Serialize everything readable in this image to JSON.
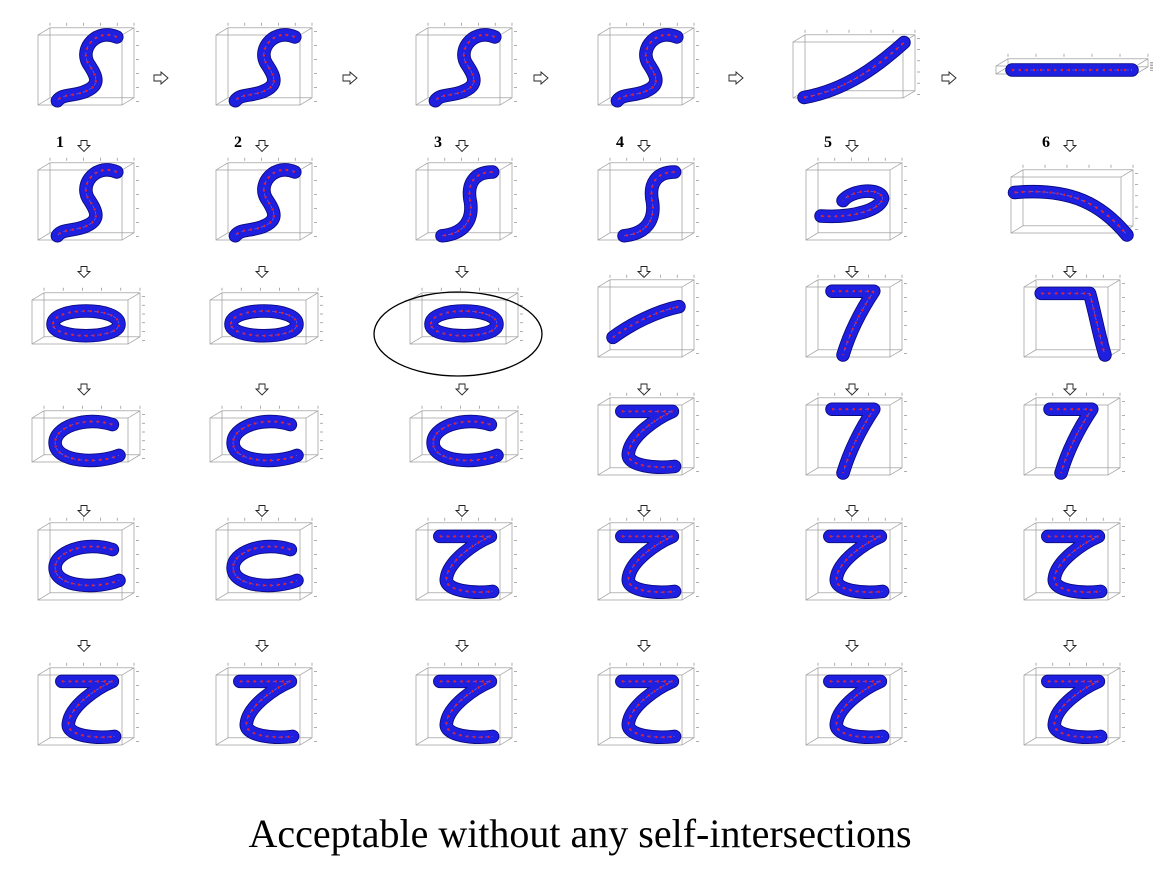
{
  "caption": "Acceptable without any self-intersections",
  "columns": [
    {
      "label": "1",
      "shapes": [
        "S",
        "S",
        "O",
        "C",
        "C",
        "Z"
      ]
    },
    {
      "label": "2",
      "shapes": [
        "S",
        "S",
        "O",
        "C",
        "C",
        "Z"
      ]
    },
    {
      "label": "3",
      "shapes": [
        "S",
        "J",
        "O",
        "C",
        "Z",
        "Z"
      ]
    },
    {
      "label": "4",
      "shapes": [
        "S",
        "J",
        "arc",
        "Z",
        "Z",
        "Z"
      ]
    },
    {
      "label": "5",
      "shapes": [
        "diag",
        "spiral",
        "7",
        "7",
        "Z",
        "Z"
      ]
    },
    {
      "label": "6",
      "shapes": [
        "flat",
        "curve",
        "hook",
        "7",
        "Z",
        "Z"
      ]
    }
  ],
  "highlighted": {
    "column": 3,
    "row": 3
  },
  "colors": {
    "fill": "#1f1fe0",
    "edge": "#0a0a80",
    "seam": "#e0202a",
    "box": "#999999"
  }
}
